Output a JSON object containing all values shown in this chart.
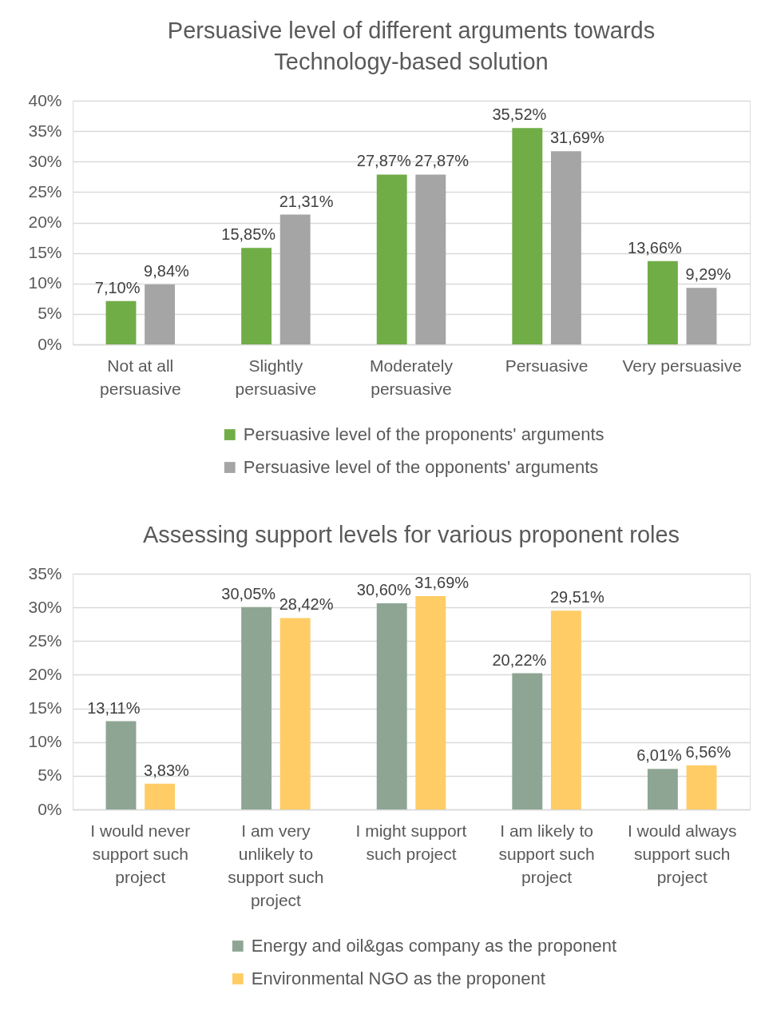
{
  "chart_data": [
    {
      "type": "bar",
      "title": "Persuasive level of different arguments towards Technology-based solution",
      "categories": [
        "Not at all persuasive",
        "Slightly persuasive",
        "Moderately persuasive",
        "Persuasive",
        "Very persuasive"
      ],
      "series": [
        {
          "name": "Persuasive level of the proponents' arguments",
          "color": "#70ad47",
          "values": [
            7.1,
            15.85,
            27.87,
            35.52,
            13.66
          ],
          "value_labels": [
            "7,10%",
            "15,85%",
            "27,87%",
            "35,52%",
            "13,66%"
          ]
        },
        {
          "name": "Persuasive level of the opponents' arguments",
          "color": "#a5a5a5",
          "values": [
            9.84,
            21.31,
            27.87,
            31.69,
            9.29
          ],
          "value_labels": [
            "9,84%",
            "21,31%",
            "27,87%",
            "31,69%",
            "9,29%"
          ]
        }
      ],
      "ylim": [
        0,
        40
      ],
      "yticks": [
        {
          "value": 0,
          "label": "0%"
        },
        {
          "value": 5,
          "label": "5%"
        },
        {
          "value": 10,
          "label": "10%"
        },
        {
          "value": 15,
          "label": "15%"
        },
        {
          "value": 20,
          "label": "20%"
        },
        {
          "value": 25,
          "label": "25%"
        },
        {
          "value": 30,
          "label": "30%"
        },
        {
          "value": 35,
          "label": "35%"
        },
        {
          "value": 40,
          "label": "40%"
        }
      ],
      "grid": "y",
      "legend": "bottom"
    },
    {
      "type": "bar",
      "title": "Assessing support levels for various proponent roles",
      "categories": [
        "I would never support such project",
        "I am very unlikely to support such project",
        "I might support such project",
        "I am likely to support such project",
        "I would always support such project"
      ],
      "series": [
        {
          "name": "Energy and oil&gas company as the proponent",
          "color": "#8ea594",
          "values": [
            13.11,
            30.05,
            30.6,
            20.22,
            6.01
          ],
          "value_labels": [
            "13,11%",
            "30,05%",
            "30,60%",
            "20,22%",
            "6,01%"
          ]
        },
        {
          "name": "Environmental NGO as the proponent",
          "color": "#ffcc66",
          "values": [
            3.83,
            28.42,
            31.69,
            29.51,
            6.56
          ],
          "value_labels": [
            "3,83%",
            "28,42%",
            "31,69%",
            "29,51%",
            "6,56%"
          ]
        }
      ],
      "ylim": [
        0,
        35
      ],
      "yticks": [
        {
          "value": 0,
          "label": "0%"
        },
        {
          "value": 5,
          "label": "5%"
        },
        {
          "value": 10,
          "label": "10%"
        },
        {
          "value": 15,
          "label": "15%"
        },
        {
          "value": 20,
          "label": "20%"
        },
        {
          "value": 25,
          "label": "25%"
        },
        {
          "value": 30,
          "label": "30%"
        },
        {
          "value": 35,
          "label": "35%"
        }
      ],
      "grid": "y",
      "legend": "bottom"
    }
  ]
}
